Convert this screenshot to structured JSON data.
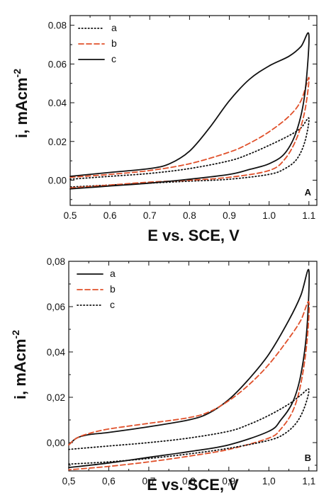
{
  "colors": {
    "a": "#111111",
    "b": "#e0502a",
    "c": "#111111",
    "axis": "#111111"
  },
  "chart_data": [
    {
      "type": "line",
      "panel_label": "A",
      "xlabel": "E vs. SCE, V",
      "ylabel": "i, mAcm",
      "ylabel_sup": "-2",
      "xlim": [
        0.5,
        1.12
      ],
      "ylim": [
        -0.013,
        0.085
      ],
      "x_ticks": [
        0.5,
        0.6,
        0.7,
        0.8,
        0.9,
        1.0,
        1.1
      ],
      "x_tick_labels": [
        "0.5",
        "0.6",
        "0.7",
        "0.8",
        "0.9",
        "1.0",
        "1.1"
      ],
      "y_ticks": [
        0.0,
        0.02,
        0.04,
        0.06,
        0.08
      ],
      "y_tick_labels": [
        "0.00",
        "0.02",
        "0.04",
        "0.06",
        "0.08"
      ],
      "legend_position": "top-left",
      "series": [
        {
          "name": "a",
          "style": "dotted",
          "forward": [
            [
              0.5,
              0.0005
            ],
            [
              0.6,
              0.002
            ],
            [
              0.7,
              0.0035
            ],
            [
              0.8,
              0.006
            ],
            [
              0.9,
              0.01
            ],
            [
              0.95,
              0.0135
            ],
            [
              1.0,
              0.018
            ],
            [
              1.05,
              0.023
            ],
            [
              1.08,
              0.027
            ],
            [
              1.1,
              0.032
            ]
          ],
          "reverse": [
            [
              1.1,
              0.032
            ],
            [
              1.09,
              0.02
            ],
            [
              1.07,
              0.011
            ],
            [
              1.04,
              0.006
            ],
            [
              1.0,
              0.003
            ],
            [
              0.9,
              0.0005
            ],
            [
              0.8,
              -0.0005
            ],
            [
              0.7,
              -0.0015
            ],
            [
              0.6,
              -0.0025
            ],
            [
              0.5,
              -0.0035
            ]
          ]
        },
        {
          "name": "b",
          "style": "dashed",
          "forward": [
            [
              0.5,
              0.0015
            ],
            [
              0.6,
              0.003
            ],
            [
              0.7,
              0.005
            ],
            [
              0.8,
              0.0085
            ],
            [
              0.9,
              0.0145
            ],
            [
              0.95,
              0.019
            ],
            [
              1.0,
              0.025
            ],
            [
              1.05,
              0.033
            ],
            [
              1.08,
              0.041
            ],
            [
              1.1,
              0.053
            ]
          ],
          "reverse": [
            [
              1.1,
              0.053
            ],
            [
              1.09,
              0.036
            ],
            [
              1.07,
              0.022
            ],
            [
              1.04,
              0.011
            ],
            [
              1.0,
              0.005
            ],
            [
              0.9,
              0.0015
            ],
            [
              0.8,
              0.0
            ],
            [
              0.7,
              -0.001
            ],
            [
              0.6,
              -0.0025
            ],
            [
              0.5,
              -0.004
            ]
          ]
        },
        {
          "name": "c",
          "style": "solid",
          "forward": [
            [
              0.5,
              0.002
            ],
            [
              0.6,
              0.004
            ],
            [
              0.7,
              0.006
            ],
            [
              0.75,
              0.0085
            ],
            [
              0.8,
              0.015
            ],
            [
              0.85,
              0.027
            ],
            [
              0.9,
              0.041
            ],
            [
              0.95,
              0.052
            ],
            [
              1.0,
              0.059
            ],
            [
              1.05,
              0.064
            ],
            [
              1.08,
              0.069
            ],
            [
              1.1,
              0.075
            ]
          ],
          "reverse": [
            [
              1.1,
              0.075
            ],
            [
              1.09,
              0.045
            ],
            [
              1.07,
              0.026
            ],
            [
              1.04,
              0.014
            ],
            [
              1.0,
              0.0085
            ],
            [
              0.95,
              0.0055
            ],
            [
              0.9,
              0.003
            ],
            [
              0.8,
              0.0005
            ],
            [
              0.7,
              -0.0015
            ],
            [
              0.6,
              -0.003
            ],
            [
              0.5,
              -0.0045
            ]
          ]
        }
      ]
    },
    {
      "type": "line",
      "panel_label": "B",
      "xlabel": "E vs. SCE, V",
      "ylabel": "i, mAcm",
      "ylabel_sup": "-2",
      "xlim": [
        0.5,
        1.12
      ],
      "ylim": [
        -0.0125,
        0.08
      ],
      "x_ticks": [
        0.5,
        0.6,
        0.7,
        0.8,
        0.9,
        1.0,
        1.1
      ],
      "x_tick_labels": [
        "0,5",
        "0,6",
        "0,7",
        "0,8",
        "0,9",
        "1,0",
        "1,1"
      ],
      "y_ticks": [
        0.0,
        0.02,
        0.04,
        0.06,
        0.08
      ],
      "y_tick_labels": [
        "0,00",
        "0,02",
        "0,04",
        "0,06",
        "0,08"
      ],
      "legend_position": "top-left",
      "series": [
        {
          "name": "a",
          "style": "solid",
          "forward": [
            [
              0.5,
              -0.001
            ],
            [
              0.52,
              0.002
            ],
            [
              0.55,
              0.0035
            ],
            [
              0.6,
              0.0045
            ],
            [
              0.7,
              0.007
            ],
            [
              0.8,
              0.01
            ],
            [
              0.85,
              0.013
            ],
            [
              0.9,
              0.019
            ],
            [
              0.95,
              0.028
            ],
            [
              1.0,
              0.039
            ],
            [
              1.05,
              0.054
            ],
            [
              1.08,
              0.065
            ],
            [
              1.1,
              0.076
            ]
          ],
          "reverse": [
            [
              1.1,
              0.076
            ],
            [
              1.095,
              0.05
            ],
            [
              1.08,
              0.03
            ],
            [
              1.06,
              0.018
            ],
            [
              1.03,
              0.01
            ],
            [
              1.0,
              0.005
            ],
            [
              0.9,
              -0.001
            ],
            [
              0.8,
              -0.004
            ],
            [
              0.7,
              -0.0065
            ],
            [
              0.6,
              -0.009
            ],
            [
              0.5,
              -0.011
            ]
          ]
        },
        {
          "name": "b",
          "style": "dashed",
          "forward": [
            [
              0.5,
              -0.001
            ],
            [
              0.52,
              0.002
            ],
            [
              0.55,
              0.004
            ],
            [
              0.6,
              0.006
            ],
            [
              0.7,
              0.0085
            ],
            [
              0.8,
              0.011
            ],
            [
              0.85,
              0.0135
            ],
            [
              0.9,
              0.0185
            ],
            [
              0.95,
              0.0255
            ],
            [
              1.0,
              0.0345
            ],
            [
              1.05,
              0.046
            ],
            [
              1.08,
              0.054
            ],
            [
              1.1,
              0.062
            ]
          ],
          "reverse": [
            [
              1.1,
              0.062
            ],
            [
              1.095,
              0.044
            ],
            [
              1.08,
              0.026
            ],
            [
              1.06,
              0.014
            ],
            [
              1.03,
              0.006
            ],
            [
              1.0,
              0.002
            ],
            [
              0.9,
              -0.003
            ],
            [
              0.8,
              -0.006
            ],
            [
              0.7,
              -0.0085
            ],
            [
              0.6,
              -0.0105
            ],
            [
              0.5,
              -0.012
            ]
          ]
        },
        {
          "name": "c",
          "style": "dotted",
          "forward": [
            [
              0.5,
              -0.003
            ],
            [
              0.6,
              -0.0015
            ],
            [
              0.7,
              0.0
            ],
            [
              0.8,
              0.002
            ],
            [
              0.9,
              0.005
            ],
            [
              0.95,
              0.008
            ],
            [
              1.0,
              0.012
            ],
            [
              1.05,
              0.017
            ],
            [
              1.08,
              0.021
            ],
            [
              1.1,
              0.0235
            ]
          ],
          "reverse": [
            [
              1.1,
              0.0235
            ],
            [
              1.09,
              0.016
            ],
            [
              1.07,
              0.009
            ],
            [
              1.04,
              0.004
            ],
            [
              1.0,
              0.001
            ],
            [
              0.9,
              -0.0025
            ],
            [
              0.8,
              -0.005
            ],
            [
              0.7,
              -0.007
            ],
            [
              0.6,
              -0.0085
            ],
            [
              0.5,
              -0.0095
            ]
          ]
        }
      ]
    }
  ]
}
